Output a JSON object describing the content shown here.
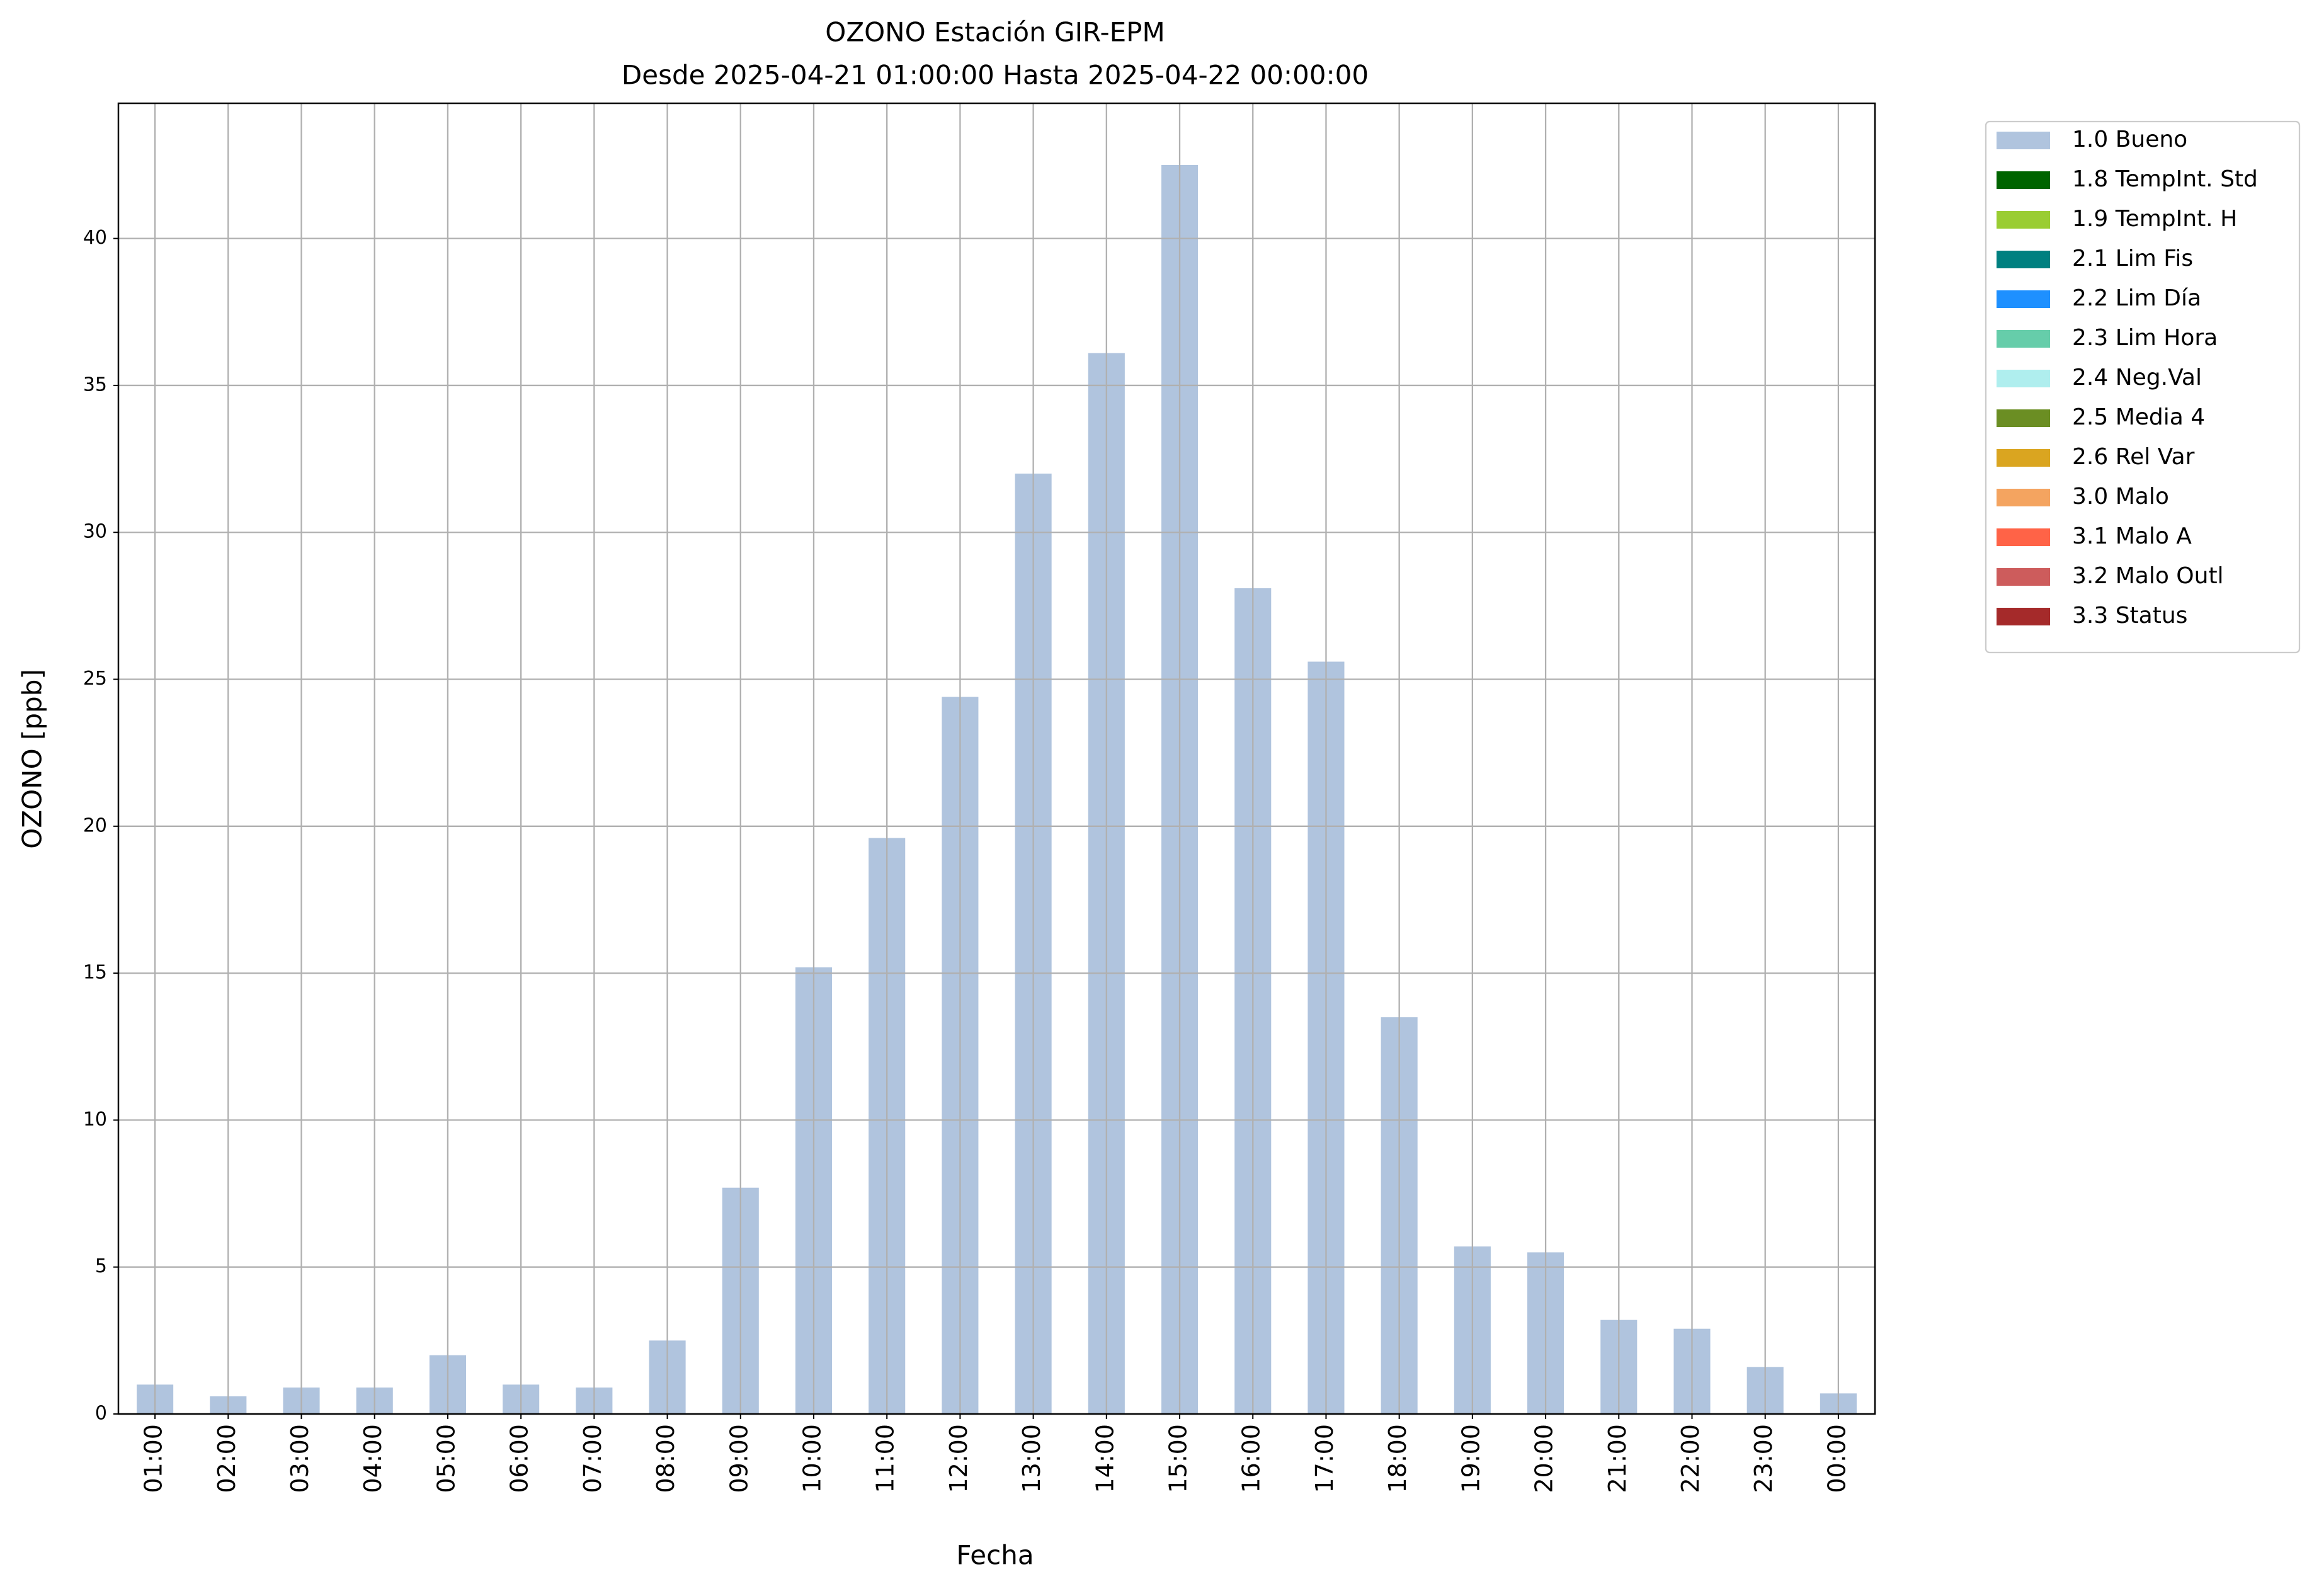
{
  "chart_data": {
    "type": "bar",
    "title": "OZONO Estación GIR-EPM",
    "subtitle": "Desde 2025-04-21 01:00:00 Hasta 2025-04-22 00:00:00",
    "x_label": "Fecha",
    "y_label": "OZONO [ppb]",
    "categories": [
      "01:00",
      "02:00",
      "03:00",
      "04:00",
      "05:00",
      "06:00",
      "07:00",
      "08:00",
      "09:00",
      "10:00",
      "11:00",
      "12:00",
      "13:00",
      "14:00",
      "15:00",
      "16:00",
      "17:00",
      "18:00",
      "19:00",
      "20:00",
      "21:00",
      "22:00",
      "23:00",
      "00:00"
    ],
    "series": [
      {
        "name": "1.0 Bueno",
        "color": "#b0c4de",
        "values": [
          1.0,
          0.6,
          0.9,
          0.9,
          2.0,
          1.0,
          0.9,
          2.5,
          7.7,
          15.2,
          19.6,
          24.4,
          32.0,
          36.1,
          42.5,
          28.1,
          25.6,
          13.5,
          5.7,
          5.5,
          3.2,
          2.9,
          1.6,
          0.7
        ]
      },
      {
        "name": "1.8 TempInt. Std",
        "color": "#006400",
        "values": [
          null,
          null,
          null,
          null,
          null,
          null,
          null,
          null,
          null,
          null,
          null,
          null,
          null,
          null,
          null,
          null,
          null,
          null,
          null,
          null,
          null,
          null,
          null,
          null
        ]
      },
      {
        "name": "1.9 TempInt. H",
        "color": "#9acd32",
        "values": [
          null,
          null,
          null,
          null,
          null,
          null,
          null,
          null,
          null,
          null,
          null,
          null,
          null,
          null,
          null,
          null,
          null,
          null,
          null,
          null,
          null,
          null,
          null,
          null
        ]
      },
      {
        "name": "2.1 Lim Fis",
        "color": "#008080",
        "values": [
          null,
          null,
          null,
          null,
          null,
          null,
          null,
          null,
          null,
          null,
          null,
          null,
          null,
          null,
          null,
          null,
          null,
          null,
          null,
          null,
          null,
          null,
          null,
          null
        ]
      },
      {
        "name": "2.2 Lim Día",
        "color": "#1e90ff",
        "values": [
          null,
          null,
          null,
          null,
          null,
          null,
          null,
          null,
          null,
          null,
          null,
          null,
          null,
          null,
          null,
          null,
          null,
          null,
          null,
          null,
          null,
          null,
          null,
          null
        ]
      },
      {
        "name": "2.3 Lim Hora",
        "color": "#66cdaa",
        "values": [
          null,
          null,
          null,
          null,
          null,
          null,
          null,
          null,
          null,
          null,
          null,
          null,
          null,
          null,
          null,
          null,
          null,
          null,
          null,
          null,
          null,
          null,
          null,
          null
        ]
      },
      {
        "name": "2.4 Neg.Val",
        "color": "#afeeee",
        "values": [
          null,
          null,
          null,
          null,
          null,
          null,
          null,
          null,
          null,
          null,
          null,
          null,
          null,
          null,
          null,
          null,
          null,
          null,
          null,
          null,
          null,
          null,
          null,
          null
        ]
      },
      {
        "name": "2.5 Media 4",
        "color": "#6b8e23",
        "values": [
          null,
          null,
          null,
          null,
          null,
          null,
          null,
          null,
          null,
          null,
          null,
          null,
          null,
          null,
          null,
          null,
          null,
          null,
          null,
          null,
          null,
          null,
          null,
          null
        ]
      },
      {
        "name": "2.6 Rel Var",
        "color": "#daa520",
        "values": [
          null,
          null,
          null,
          null,
          null,
          null,
          null,
          null,
          null,
          null,
          null,
          null,
          null,
          null,
          null,
          null,
          null,
          null,
          null,
          null,
          null,
          null,
          null,
          null
        ]
      },
      {
        "name": "3.0 Malo",
        "color": "#f4a460",
        "values": [
          null,
          null,
          null,
          null,
          null,
          null,
          null,
          null,
          null,
          null,
          null,
          null,
          null,
          null,
          null,
          null,
          null,
          null,
          null,
          null,
          null,
          null,
          null,
          null
        ]
      },
      {
        "name": "3.1 Malo A",
        "color": "#ff6347",
        "values": [
          null,
          null,
          null,
          null,
          null,
          null,
          null,
          null,
          null,
          null,
          null,
          null,
          null,
          null,
          null,
          null,
          null,
          null,
          null,
          null,
          null,
          null,
          null,
          null
        ]
      },
      {
        "name": "3.2 Malo Outl",
        "color": "#cd5c5c",
        "values": [
          null,
          null,
          null,
          null,
          null,
          null,
          null,
          null,
          null,
          null,
          null,
          null,
          null,
          null,
          null,
          null,
          null,
          null,
          null,
          null,
          null,
          null,
          null,
          null
        ]
      },
      {
        "name": "3.3 Status",
        "color": "#a52a2a",
        "values": [
          null,
          null,
          null,
          null,
          null,
          null,
          null,
          null,
          null,
          null,
          null,
          null,
          null,
          null,
          null,
          null,
          null,
          null,
          null,
          null,
          null,
          null,
          null,
          null
        ]
      }
    ],
    "stacked": true,
    "ylim": [
      0,
      44.6
    ],
    "yticks": [
      0,
      5,
      10,
      15,
      20,
      25,
      30,
      35,
      40
    ],
    "grid": true,
    "legend": "outside-upper-right"
  }
}
